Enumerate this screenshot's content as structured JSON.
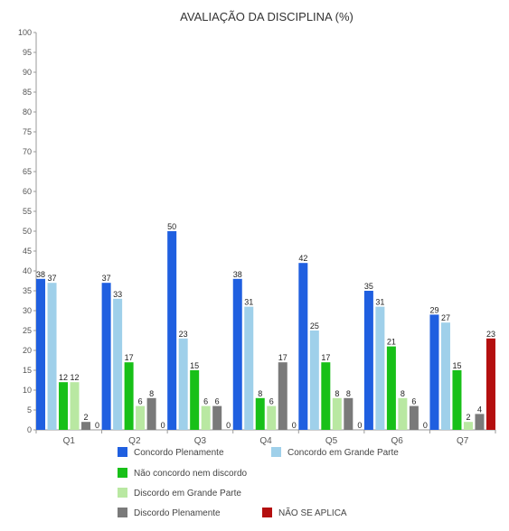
{
  "chart_data": {
    "type": "bar",
    "title": "AVALIAÇÃO DA DISCIPLINA (%)",
    "xlabel": "",
    "ylabel": "",
    "ylim": [
      0,
      100
    ],
    "yticks": [
      0,
      5,
      10,
      15,
      20,
      25,
      30,
      35,
      40,
      45,
      50,
      55,
      60,
      65,
      70,
      75,
      80,
      85,
      90,
      95,
      100
    ],
    "grid": false,
    "legend_position": "bottom",
    "categories": [
      "Q1",
      "Q2",
      "Q3",
      "Q4",
      "Q5",
      "Q6",
      "Q7"
    ],
    "series": [
      {
        "name": "Concordo Plenamente",
        "color": "#1f5fe0",
        "values": [
          38,
          37,
          50,
          38,
          42,
          35,
          29
        ]
      },
      {
        "name": "Concordo em Grande Parte",
        "color": "#9fd0ea",
        "values": [
          37,
          33,
          23,
          31,
          25,
          31,
          27
        ]
      },
      {
        "name": "Não concordo nem discordo",
        "color": "#18c018",
        "values": [
          12,
          17,
          15,
          8,
          17,
          21,
          15
        ]
      },
      {
        "name": "Discordo em Grande Parte",
        "color": "#b9e8a2",
        "values": [
          12,
          6,
          6,
          6,
          8,
          8,
          2
        ]
      },
      {
        "name": "Discordo Plenamente",
        "color": "#7a7a7a",
        "values": [
          2,
          8,
          6,
          17,
          8,
          6,
          4
        ]
      },
      {
        "name": "NÃO SE APLICA",
        "color": "#b40f0f",
        "values": [
          0,
          0,
          0,
          0,
          0,
          0,
          23
        ]
      }
    ]
  }
}
